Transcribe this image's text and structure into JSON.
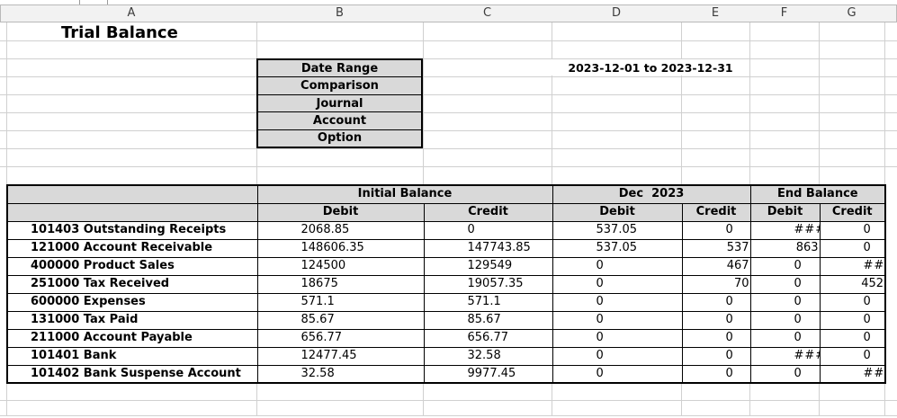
{
  "sheet": {
    "column_letters": [
      "A",
      "B",
      "C",
      "D",
      "E",
      "F",
      "G"
    ],
    "title": "Trial Balance"
  },
  "filters": {
    "labels": [
      "Date Range",
      "Comparison",
      "Journal",
      "Account",
      "Option"
    ],
    "date_range": "2023-12-01 to 2023-12-31"
  },
  "table": {
    "groups": [
      "Initial Balance",
      "Dec  2023",
      "End Balance"
    ],
    "subheaders": [
      "Debit",
      "Credit",
      "Debit",
      "Credit",
      "Debit",
      "Credit"
    ],
    "rows": [
      {
        "account": "101403 Outstanding Receipts",
        "values": [
          "2068.85",
          "0",
          "537.05",
          "0",
          "###",
          "0"
        ]
      },
      {
        "account": "121000 Account Receivable",
        "values": [
          "148606.35",
          "147743.85",
          "537.05",
          "537",
          "863",
          "0"
        ]
      },
      {
        "account": "400000 Product Sales",
        "values": [
          "124500",
          "129549",
          "0",
          "467",
          "0",
          "###"
        ]
      },
      {
        "account": "251000 Tax Received",
        "values": [
          "18675",
          "19057.35",
          "0",
          "70",
          "0",
          "452"
        ]
      },
      {
        "account": "600000 Expenses",
        "values": [
          "571.1",
          "571.1",
          "0",
          "0",
          "0",
          "0"
        ]
      },
      {
        "account": "131000 Tax Paid",
        "values": [
          "85.67",
          "85.67",
          "0",
          "0",
          "0",
          "0"
        ]
      },
      {
        "account": "211000 Account Payable",
        "values": [
          "656.77",
          "656.77",
          "0",
          "0",
          "0",
          "0"
        ]
      },
      {
        "account": "101401 Bank",
        "values": [
          "12477.45",
          "32.58",
          "0",
          "0",
          "###",
          "0"
        ]
      },
      {
        "account": "101402 Bank Suspense Account",
        "values": [
          "32.58",
          "9977.45",
          "0",
          "0",
          "0",
          "###"
        ]
      }
    ]
  }
}
